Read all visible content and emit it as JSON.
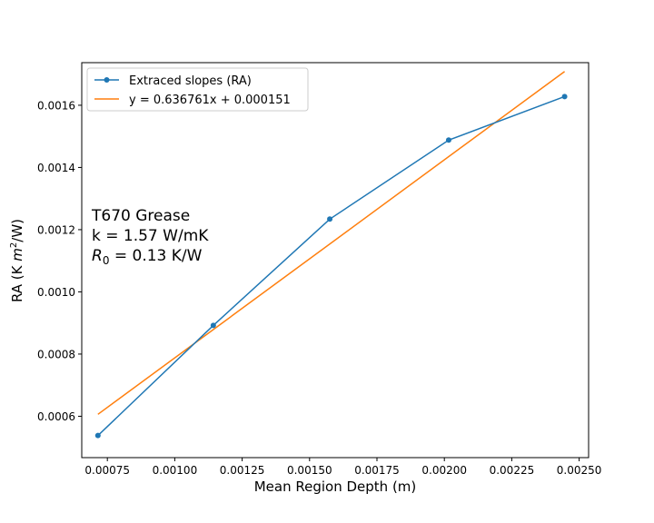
{
  "chart_data": {
    "type": "line",
    "xlabel": "Mean Region Depth (m)",
    "ylabel_main": "RA (K ",
    "ylabel_italic": "m",
    "ylabel_sup": "2",
    "ylabel_tail": "/W)",
    "xlim": [
      0.000655,
      0.002535
    ],
    "ylim": [
      0.000467,
      0.001737
    ],
    "x_ticks": [
      0.00075,
      0.001,
      0.00125,
      0.0015,
      0.00175,
      0.002,
      0.00225,
      0.0025
    ],
    "x_tick_labels": [
      "0.00075",
      "0.00100",
      "0.00125",
      "0.00150",
      "0.00175",
      "0.00200",
      "0.00225",
      "0.00250"
    ],
    "y_ticks": [
      0.0006,
      0.0008,
      0.001,
      0.0012,
      0.0014,
      0.0016
    ],
    "y_tick_labels": [
      "0.0006",
      "0.0008",
      "0.0010",
      "0.0012",
      "0.0014",
      "0.0016"
    ],
    "grid": false,
    "legend_position": "top-left",
    "series": [
      {
        "name": "Extraced slopes (RA)",
        "color": "#1f77b4",
        "marker": "circle",
        "x": [
          0.000715,
          0.001143,
          0.001575,
          0.002016,
          0.002446
        ],
        "y": [
          0.000538,
          0.000892,
          0.001234,
          0.001488,
          0.001628
        ]
      },
      {
        "name": "y = 0.636761x + 0.000151",
        "color": "#ff7f0e",
        "marker": "none",
        "slope": 0.636761,
        "intercept": 0.000151,
        "x": [
          0.000715,
          0.002446
        ]
      }
    ],
    "annotation": {
      "line1": "T670 Grease",
      "line2": "k = 1.57 W/mK",
      "line3_symbol": "R",
      "line3_sub": "0",
      "line3_rest": " = 0.13 K/W"
    }
  }
}
